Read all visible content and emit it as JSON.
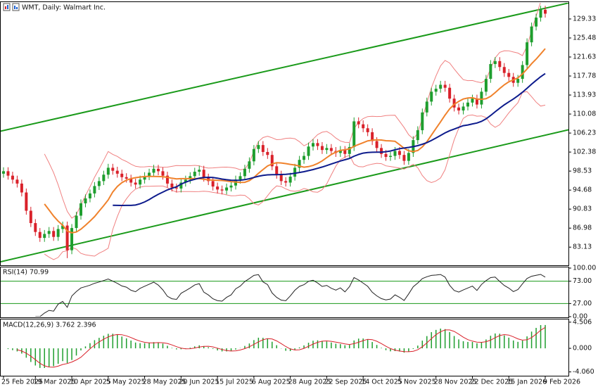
{
  "chart_data": {
    "type": "candlestick",
    "title": "WMT, Daily: Walmart Inc.",
    "categories": [
      "25 Feb 2025",
      null,
      null,
      null,
      null,
      null,
      null,
      "19 Mar 2025",
      null,
      null,
      null,
      null,
      null,
      null,
      null,
      "10 Apr 2025",
      null,
      null,
      null,
      null,
      null,
      null,
      null,
      "5 May 2025",
      null,
      null,
      null,
      null,
      null,
      null,
      null,
      "28 May 2025",
      null,
      null,
      null,
      null,
      null,
      null,
      null,
      "20 Jun 2025",
      null,
      null,
      null,
      null,
      null,
      null,
      null,
      "15 Jul 2025",
      null,
      null,
      null,
      null,
      null,
      null,
      null,
      "6 Aug 2025",
      null,
      null,
      null,
      null,
      null,
      null,
      null,
      "28 Aug 2025",
      null,
      null,
      null,
      null,
      null,
      null,
      null,
      "22 Sep 2025",
      null,
      null,
      null,
      null,
      null,
      null,
      null,
      "14 Oct 2025",
      null,
      null,
      null,
      null,
      null,
      null,
      null,
      "5 Nov 2025",
      null,
      null,
      null,
      null,
      null,
      null,
      null,
      "28 Nov 2025",
      null,
      null,
      null,
      null,
      null,
      null,
      null,
      "22 Dec 2025",
      null,
      null,
      null,
      null,
      null,
      null,
      null,
      "15 Jan 2026",
      null,
      null,
      null,
      null,
      null,
      null,
      null,
      "9 Feb 2026"
    ],
    "open": [
      98.0,
      98.5,
      97.6,
      96.8,
      96.0,
      94.2,
      90.5,
      88.0,
      86.2,
      85.0,
      85.8,
      86.4,
      85.2,
      86.8,
      87.5,
      82.5,
      87.0,
      89.5,
      92.0,
      93.0,
      94.0,
      95.5,
      96.5,
      97.8,
      99.2,
      98.6,
      98.0,
      97.3,
      97.0,
      96.2,
      95.8,
      96.8,
      97.5,
      98.2,
      99.0,
      98.5,
      97.6,
      96.0,
      95.2,
      95.0,
      96.2,
      96.8,
      97.5,
      98.4,
      98.8,
      97.2,
      96.5,
      95.4,
      94.8,
      94.6,
      95.2,
      95.6,
      96.8,
      97.5,
      99.0,
      100.5,
      103.0,
      103.8,
      102.4,
      101.8,
      99.5,
      97.8,
      96.5,
      96.2,
      97.4,
      99.2,
      100.8,
      101.6,
      103.5,
      104.2,
      103.6,
      102.8,
      103.2,
      102.6,
      102.2,
      102.8,
      102.0,
      103.4,
      108.6,
      108.0,
      107.2,
      106.4,
      104.6,
      103.2,
      102.0,
      101.4,
      101.6,
      102.6,
      101.8,
      100.6,
      102.2,
      104.8,
      106.8,
      110.4,
      112.6,
      114.6,
      115.2,
      116.0,
      115.4,
      113.2,
      111.4,
      110.8,
      111.6,
      112.4,
      113.2,
      112.0,
      114.6,
      117.2,
      120.2,
      120.8,
      119.6,
      118.4,
      117.6,
      116.4,
      117.2,
      120.0,
      124.6,
      127.8,
      129.6,
      131.2
    ],
    "high": [
      99.3,
      99.3,
      98.4,
      97.6,
      96.8,
      95.0,
      91.3,
      88.8,
      87.0,
      86.6,
      87.2,
      87.2,
      87.6,
      88.3,
      88.3,
      87.8,
      90.3,
      92.8,
      93.8,
      94.8,
      96.3,
      97.3,
      98.6,
      100.0,
      100.0,
      99.4,
      98.8,
      98.1,
      97.8,
      97.0,
      97.6,
      98.3,
      99.0,
      99.8,
      99.8,
      99.3,
      98.4,
      96.8,
      96.0,
      97.0,
      97.6,
      98.3,
      99.2,
      99.6,
      99.6,
      98.0,
      97.3,
      96.2,
      95.6,
      96.0,
      96.4,
      97.6,
      98.3,
      99.8,
      101.3,
      103.8,
      104.6,
      104.6,
      103.2,
      102.6,
      100.3,
      98.6,
      97.3,
      98.2,
      100.0,
      101.6,
      102.4,
      104.3,
      105.0,
      105.0,
      104.4,
      104.0,
      104.0,
      103.4,
      103.6,
      103.6,
      104.2,
      109.4,
      109.4,
      108.8,
      108.0,
      107.2,
      105.4,
      104.0,
      102.8,
      102.4,
      103.4,
      103.4,
      102.6,
      103.0,
      105.6,
      107.6,
      111.2,
      113.4,
      115.4,
      116.0,
      116.8,
      116.8,
      116.2,
      114.0,
      112.2,
      112.4,
      113.2,
      114.0,
      114.0,
      115.4,
      118.0,
      121.0,
      121.6,
      121.6,
      120.4,
      119.2,
      118.4,
      118.0,
      120.8,
      125.4,
      128.6,
      130.4,
      132.0,
      132.0
    ],
    "low": [
      97.2,
      96.8,
      96.0,
      95.2,
      93.4,
      89.7,
      87.2,
      85.4,
      84.2,
      84.2,
      85.0,
      84.4,
      84.4,
      86.0,
      80.9,
      81.7,
      86.2,
      88.7,
      91.2,
      92.2,
      93.2,
      94.7,
      95.7,
      97.0,
      97.8,
      97.2,
      96.5,
      96.2,
      95.4,
      95.0,
      95.0,
      96.0,
      96.7,
      97.4,
      97.7,
      96.8,
      95.2,
      94.4,
      94.2,
      94.2,
      95.4,
      96.0,
      96.7,
      97.6,
      96.4,
      95.7,
      94.6,
      94.0,
      93.8,
      93.8,
      94.4,
      94.8,
      96.0,
      96.7,
      98.2,
      99.7,
      102.2,
      101.6,
      101.0,
      98.7,
      97.0,
      95.7,
      95.4,
      95.4,
      96.6,
      98.4,
      100.0,
      100.8,
      102.7,
      102.8,
      102.0,
      102.0,
      101.8,
      101.4,
      101.4,
      101.2,
      101.2,
      102.6,
      107.2,
      106.4,
      105.6,
      103.8,
      102.4,
      101.2,
      100.6,
      100.6,
      100.8,
      101.0,
      99.8,
      99.8,
      101.4,
      104.0,
      106.0,
      109.6,
      111.8,
      113.8,
      114.4,
      114.6,
      112.4,
      110.6,
      110.0,
      110.0,
      110.8,
      111.6,
      111.2,
      111.2,
      113.8,
      116.4,
      119.4,
      118.8,
      117.6,
      116.8,
      115.6,
      115.6,
      116.4,
      119.2,
      123.8,
      127.0,
      128.8,
      129.6
    ],
    "close": [
      98.5,
      97.6,
      96.8,
      96.0,
      94.2,
      90.5,
      88.0,
      86.2,
      85.0,
      85.8,
      86.4,
      85.2,
      86.8,
      87.5,
      82.5,
      87.0,
      89.5,
      92.0,
      93.0,
      94.0,
      95.5,
      96.5,
      97.8,
      99.2,
      98.6,
      98.0,
      97.3,
      97.0,
      96.2,
      95.8,
      96.8,
      97.5,
      98.2,
      99.0,
      98.5,
      97.6,
      96.0,
      95.2,
      95.0,
      96.2,
      96.8,
      97.5,
      98.4,
      98.8,
      97.2,
      96.5,
      95.4,
      94.8,
      94.6,
      95.2,
      95.6,
      96.8,
      97.5,
      99.0,
      100.5,
      103.0,
      103.8,
      102.4,
      101.8,
      99.5,
      97.8,
      96.5,
      96.2,
      97.4,
      99.2,
      100.8,
      101.6,
      103.5,
      104.2,
      103.6,
      102.8,
      103.2,
      102.6,
      102.2,
      102.8,
      102.0,
      103.4,
      108.6,
      108.0,
      107.2,
      106.4,
      104.6,
      103.2,
      102.0,
      101.4,
      101.6,
      102.6,
      101.8,
      100.6,
      102.2,
      104.8,
      106.8,
      110.4,
      112.6,
      114.6,
      115.2,
      116.0,
      115.4,
      113.2,
      111.4,
      110.8,
      111.6,
      112.4,
      113.2,
      112.0,
      114.6,
      117.2,
      120.2,
      120.8,
      119.6,
      118.4,
      117.6,
      116.4,
      117.2,
      120.0,
      124.6,
      127.8,
      129.6,
      131.2,
      130.4
    ],
    "colors": {
      "up": "#1e9e2e",
      "down": "#d9212a"
    },
    "ylim": [
      79.6,
      132.6
    ],
    "yticks": [
      83.13,
      86.98,
      90.83,
      94.68,
      98.53,
      102.38,
      106.23,
      110.08,
      113.93,
      117.78,
      121.63,
      125.48,
      129.33
    ],
    "channel": {
      "color": "#1a9a1a",
      "upper": [
        106.75,
        131.5
      ],
      "lower": [
        80.3,
        105.8
      ]
    },
    "indicators": {
      "fast_ma_color": "#f0822c",
      "slow_ma_color": "#0d1b8c",
      "bands_color": "#f08080"
    },
    "rsi": {
      "label": "RSI(14) 70.99",
      "color": "#222222",
      "level_color": "#1a9a1a",
      "ylim": [
        0,
        100
      ],
      "yticks": [
        {
          "value": 100,
          "label": "100.00"
        },
        {
          "value": 73,
          "label": "73.00"
        },
        {
          "value": 27,
          "label": "27.00"
        },
        {
          "value": 0,
          "label": "0.00"
        }
      ]
    },
    "macd": {
      "label": "MACD(12,26,9) 3.762 2.396",
      "hist_color": "#1e9e2e",
      "signal_color": "#d9212a",
      "ylim": [
        -4.6,
        4.85
      ],
      "yticks": [
        4.506,
        {
          "value": 0,
          "label": "0.000"
        },
        {
          "value": -4.06,
          "label": "-4.060"
        }
      ]
    }
  }
}
